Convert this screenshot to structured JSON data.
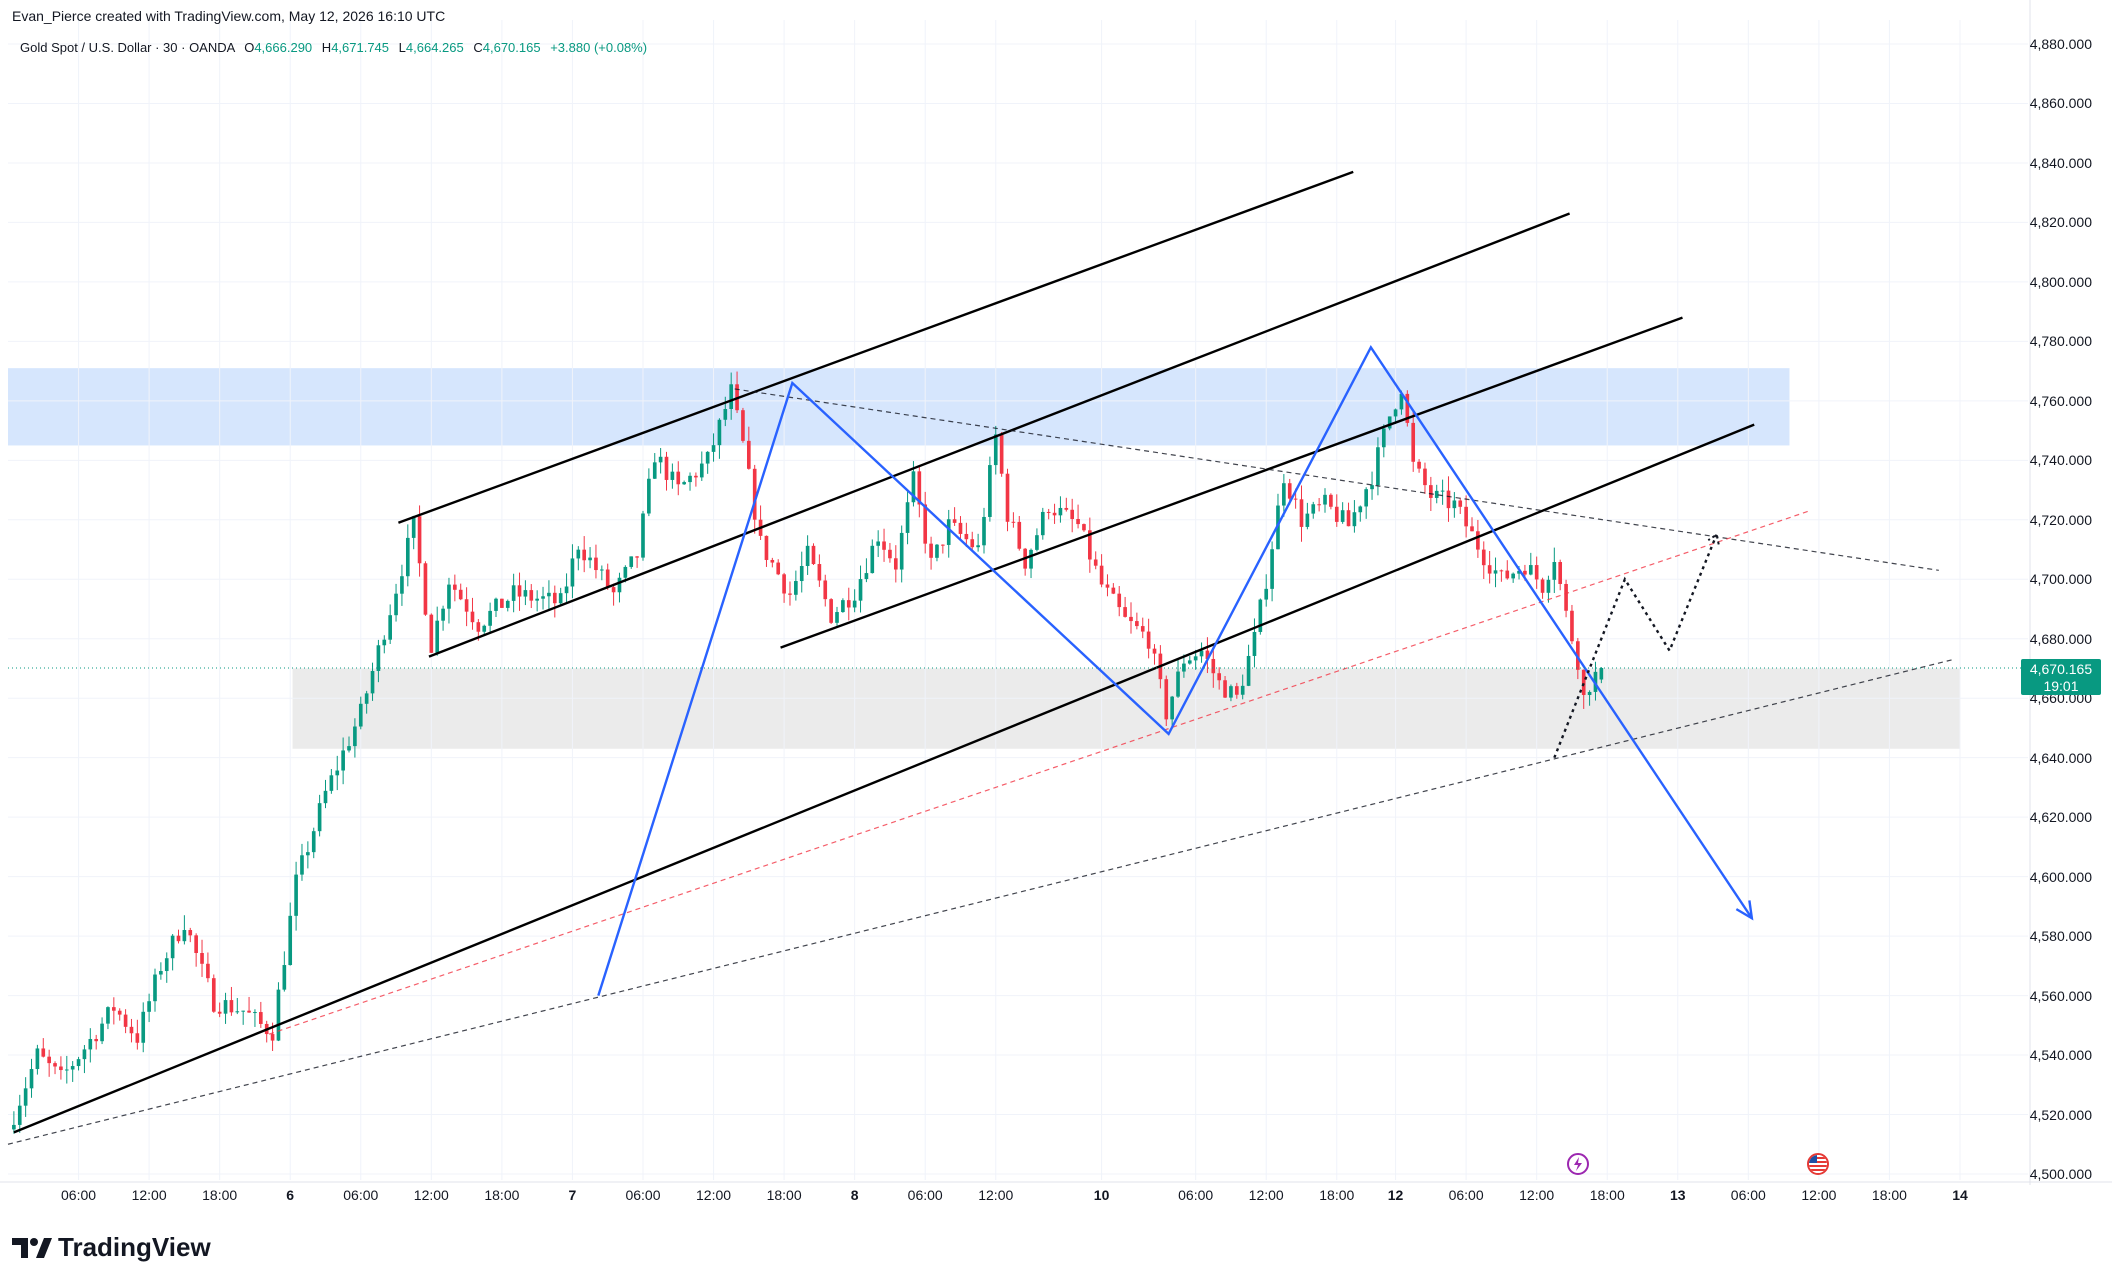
{
  "header": {
    "attribution": "Evan_Pierce created with TradingView.com, May 12, 2026 16:10 UTC"
  },
  "legend": {
    "symbol": "Gold Spot / U.S. Dollar · 30 · OANDA",
    "open_label": "O",
    "open": "4,666.290",
    "high_label": "H",
    "high": "4,671.745",
    "low_label": "L",
    "low": "4,664.265",
    "close_label": "C",
    "close": "4,670.165",
    "change": "+3.880 (+0.08%)"
  },
  "price_tag": {
    "price": "4,670.165",
    "countdown": "19:01"
  },
  "brand": {
    "name": "TradingView"
  },
  "colors": {
    "up": "#089981",
    "down": "#f23645",
    "trend": "#000000",
    "zigzag": "#2962ff",
    "resistance_zone": "#bbd6fb",
    "support_zone": "#e0e0e0",
    "red_dashed": "#f23645"
  },
  "icons": {
    "event_1": "lightning-event-icon",
    "event_2": "us-flag-event-icon",
    "brand_logo": "tradingview-logo-icon"
  },
  "chart_data": {
    "type": "candlestick",
    "symbol": "XAUUSD",
    "interval": "30",
    "y_axis": {
      "ticks": [
        "4,880.000",
        "4,860.000",
        "4,840.000",
        "4,820.000",
        "4,800.000",
        "4,780.000",
        "4,760.000",
        "4,740.000",
        "4,720.000",
        "4,700.000",
        "4,680.000",
        "4,660.000",
        "4,640.000",
        "4,620.000",
        "4,600.000",
        "4,580.000",
        "4,560.000",
        "4,540.000",
        "4,520.000",
        "4,500.000"
      ],
      "ylim": [
        4495,
        4885
      ]
    },
    "x_axis": {
      "ticks": [
        {
          "label": "06:00",
          "t": 6,
          "bold": false
        },
        {
          "label": "12:00",
          "t": 12,
          "bold": false
        },
        {
          "label": "18:00",
          "t": 18,
          "bold": false
        },
        {
          "label": "6",
          "t": 24,
          "bold": true
        },
        {
          "label": "06:00",
          "t": 30,
          "bold": false
        },
        {
          "label": "12:00",
          "t": 36,
          "bold": false
        },
        {
          "label": "18:00",
          "t": 42,
          "bold": false
        },
        {
          "label": "7",
          "t": 48,
          "bold": true
        },
        {
          "label": "06:00",
          "t": 54,
          "bold": false
        },
        {
          "label": "12:00",
          "t": 60,
          "bold": false
        },
        {
          "label": "18:00",
          "t": 66,
          "bold": false
        },
        {
          "label": "8",
          "t": 72,
          "bold": true
        },
        {
          "label": "06:00",
          "t": 78,
          "bold": false
        },
        {
          "label": "12:00",
          "t": 84,
          "bold": false
        },
        {
          "label": "10",
          "t": 93,
          "bold": true
        },
        {
          "label": "06:00",
          "t": 101,
          "bold": false
        },
        {
          "label": "12:00",
          "t": 107,
          "bold": false
        },
        {
          "label": "18:00",
          "t": 113,
          "bold": false
        },
        {
          "label": "12",
          "t": 118,
          "bold": true
        },
        {
          "label": "06:00",
          "t": 124,
          "bold": false
        },
        {
          "label": "12:00",
          "t": 130,
          "bold": false
        },
        {
          "label": "18:00",
          "t": 136,
          "bold": false
        },
        {
          "label": "13",
          "t": 142,
          "bold": true
        },
        {
          "label": "06:00",
          "t": 148,
          "bold": false
        },
        {
          "label": "12:00",
          "t": 154,
          "bold": false
        },
        {
          "label": "18:00",
          "t": 160,
          "bold": false
        },
        {
          "label": "14",
          "t": 166,
          "bold": true
        }
      ],
      "xlim": [
        0,
        177
      ]
    },
    "anchors": [
      {
        "t": 0,
        "p": 4515
      },
      {
        "t": 2.5,
        "p": 4540
      },
      {
        "t": 4.5,
        "p": 4532
      },
      {
        "t": 7,
        "p": 4545
      },
      {
        "t": 9,
        "p": 4556
      },
      {
        "t": 11,
        "p": 4546
      },
      {
        "t": 13,
        "p": 4570
      },
      {
        "t": 15,
        "p": 4585
      },
      {
        "t": 16.5,
        "p": 4568
      },
      {
        "t": 17.5,
        "p": 4558
      },
      {
        "t": 20,
        "p": 4555
      },
      {
        "t": 21.5,
        "p": 4550
      },
      {
        "t": 22.5,
        "p": 4548
      },
      {
        "t": 24.5,
        "p": 4598
      },
      {
        "t": 27,
        "p": 4628
      },
      {
        "t": 30,
        "p": 4655
      },
      {
        "t": 32.5,
        "p": 4690
      },
      {
        "t": 34.5,
        "p": 4718
      },
      {
        "t": 36,
        "p": 4678
      },
      {
        "t": 37.5,
        "p": 4700
      },
      {
        "t": 40,
        "p": 4685
      },
      {
        "t": 43,
        "p": 4695
      },
      {
        "t": 47,
        "p": 4692
      },
      {
        "t": 48.5,
        "p": 4712
      },
      {
        "t": 51.5,
        "p": 4695
      },
      {
        "t": 53.5,
        "p": 4708
      },
      {
        "t": 55,
        "p": 4742
      },
      {
        "t": 57,
        "p": 4730
      },
      {
        "t": 59.5,
        "p": 4740
      },
      {
        "t": 61.5,
        "p": 4763
      },
      {
        "t": 62.5,
        "p": 4745
      },
      {
        "t": 64,
        "p": 4712
      },
      {
        "t": 66.5,
        "p": 4695
      },
      {
        "t": 68,
        "p": 4708
      },
      {
        "t": 70,
        "p": 4688
      },
      {
        "t": 72,
        "p": 4696
      },
      {
        "t": 74,
        "p": 4715
      },
      {
        "t": 75.5,
        "p": 4705
      },
      {
        "t": 77,
        "p": 4733
      },
      {
        "t": 78.5,
        "p": 4705
      },
      {
        "t": 80,
        "p": 4718
      },
      {
        "t": 82.5,
        "p": 4710
      },
      {
        "t": 84,
        "p": 4748
      },
      {
        "t": 85,
        "p": 4722
      },
      {
        "t": 86.5,
        "p": 4706
      },
      {
        "t": 88.5,
        "p": 4725
      },
      {
        "t": 91,
        "p": 4718
      },
      {
        "t": 93,
        "p": 4698
      },
      {
        "t": 95,
        "p": 4686
      },
      {
        "t": 97,
        "p": 4680
      },
      {
        "t": 98.5,
        "p": 4655
      },
      {
        "t": 100,
        "p": 4673
      },
      {
        "t": 101.5,
        "p": 4676
      },
      {
        "t": 103,
        "p": 4665
      },
      {
        "t": 104.5,
        "p": 4660
      },
      {
        "t": 106,
        "p": 4680
      },
      {
        "t": 107,
        "p": 4700
      },
      {
        "t": 108.5,
        "p": 4735
      },
      {
        "t": 110,
        "p": 4720
      },
      {
        "t": 112,
        "p": 4725
      },
      {
        "t": 114,
        "p": 4718
      },
      {
        "t": 116,
        "p": 4735
      },
      {
        "t": 117.5,
        "p": 4755
      },
      {
        "t": 118.5,
        "p": 4765
      },
      {
        "t": 119.5,
        "p": 4738
      },
      {
        "t": 121,
        "p": 4728
      },
      {
        "t": 123,
        "p": 4725
      },
      {
        "t": 125.5,
        "p": 4708
      },
      {
        "t": 127,
        "p": 4700
      },
      {
        "t": 129,
        "p": 4705
      },
      {
        "t": 130.5,
        "p": 4698
      },
      {
        "t": 131.5,
        "p": 4708
      },
      {
        "t": 132.5,
        "p": 4688
      },
      {
        "t": 133.5,
        "p": 4673
      },
      {
        "t": 134,
        "p": 4660
      },
      {
        "t": 134.5,
        "p": 4665
      },
      {
        "t": 135.5,
        "p": 4670.165
      }
    ],
    "overlays": {
      "resistance_zone": {
        "t0": 0,
        "t1": 151.5,
        "p0": 4745,
        "p1": 4771
      },
      "support_zone": {
        "t0": 24.2,
        "t1": 166,
        "p0": 4643,
        "p1": 4670
      },
      "channel_lines": [
        {
          "t0": 33.2,
          "p0": 4719,
          "t1": 114.4,
          "p1": 4837
        },
        {
          "t0": 35.8,
          "p0": 4674,
          "t1": 132.8,
          "p1": 4823
        },
        {
          "t0": 65.7,
          "p0": 4677,
          "t1": 142.4,
          "p1": 4788
        },
        {
          "t0": 0.5,
          "p0": 4514,
          "t1": 148.5,
          "p1": 4752
        }
      ],
      "zigzag": [
        {
          "t": 50.2,
          "p": 4560
        },
        {
          "t": 66.7,
          "p": 4766
        },
        {
          "t": 98.7,
          "p": 4648
        },
        {
          "t": 115.9,
          "p": 4778
        },
        {
          "t": 148.3,
          "p": 4586
        }
      ],
      "zigzag_arrow_tip": {
        "t": 148.3,
        "p": 4586
      },
      "dashed_lines": [
        {
          "t0": 61.8,
          "p0": 4764,
          "t1": 164.2,
          "p1": 4703,
          "color": "black"
        },
        {
          "t0": 0,
          "p0": 4510,
          "t1": 165.4,
          "p1": 4673,
          "color": "black"
        },
        {
          "t0": 22.2,
          "p0": 4547,
          "t1": 153.2,
          "p1": 4723,
          "color": "red"
        }
      ],
      "projection_path": [
        {
          "t": 131.5,
          "p": 4640
        },
        {
          "t": 137.5,
          "p": 4700
        },
        {
          "t": 141.3,
          "p": 4676
        },
        {
          "t": 145.3,
          "p": 4715
        }
      ],
      "current_price": 4670.165
    }
  }
}
